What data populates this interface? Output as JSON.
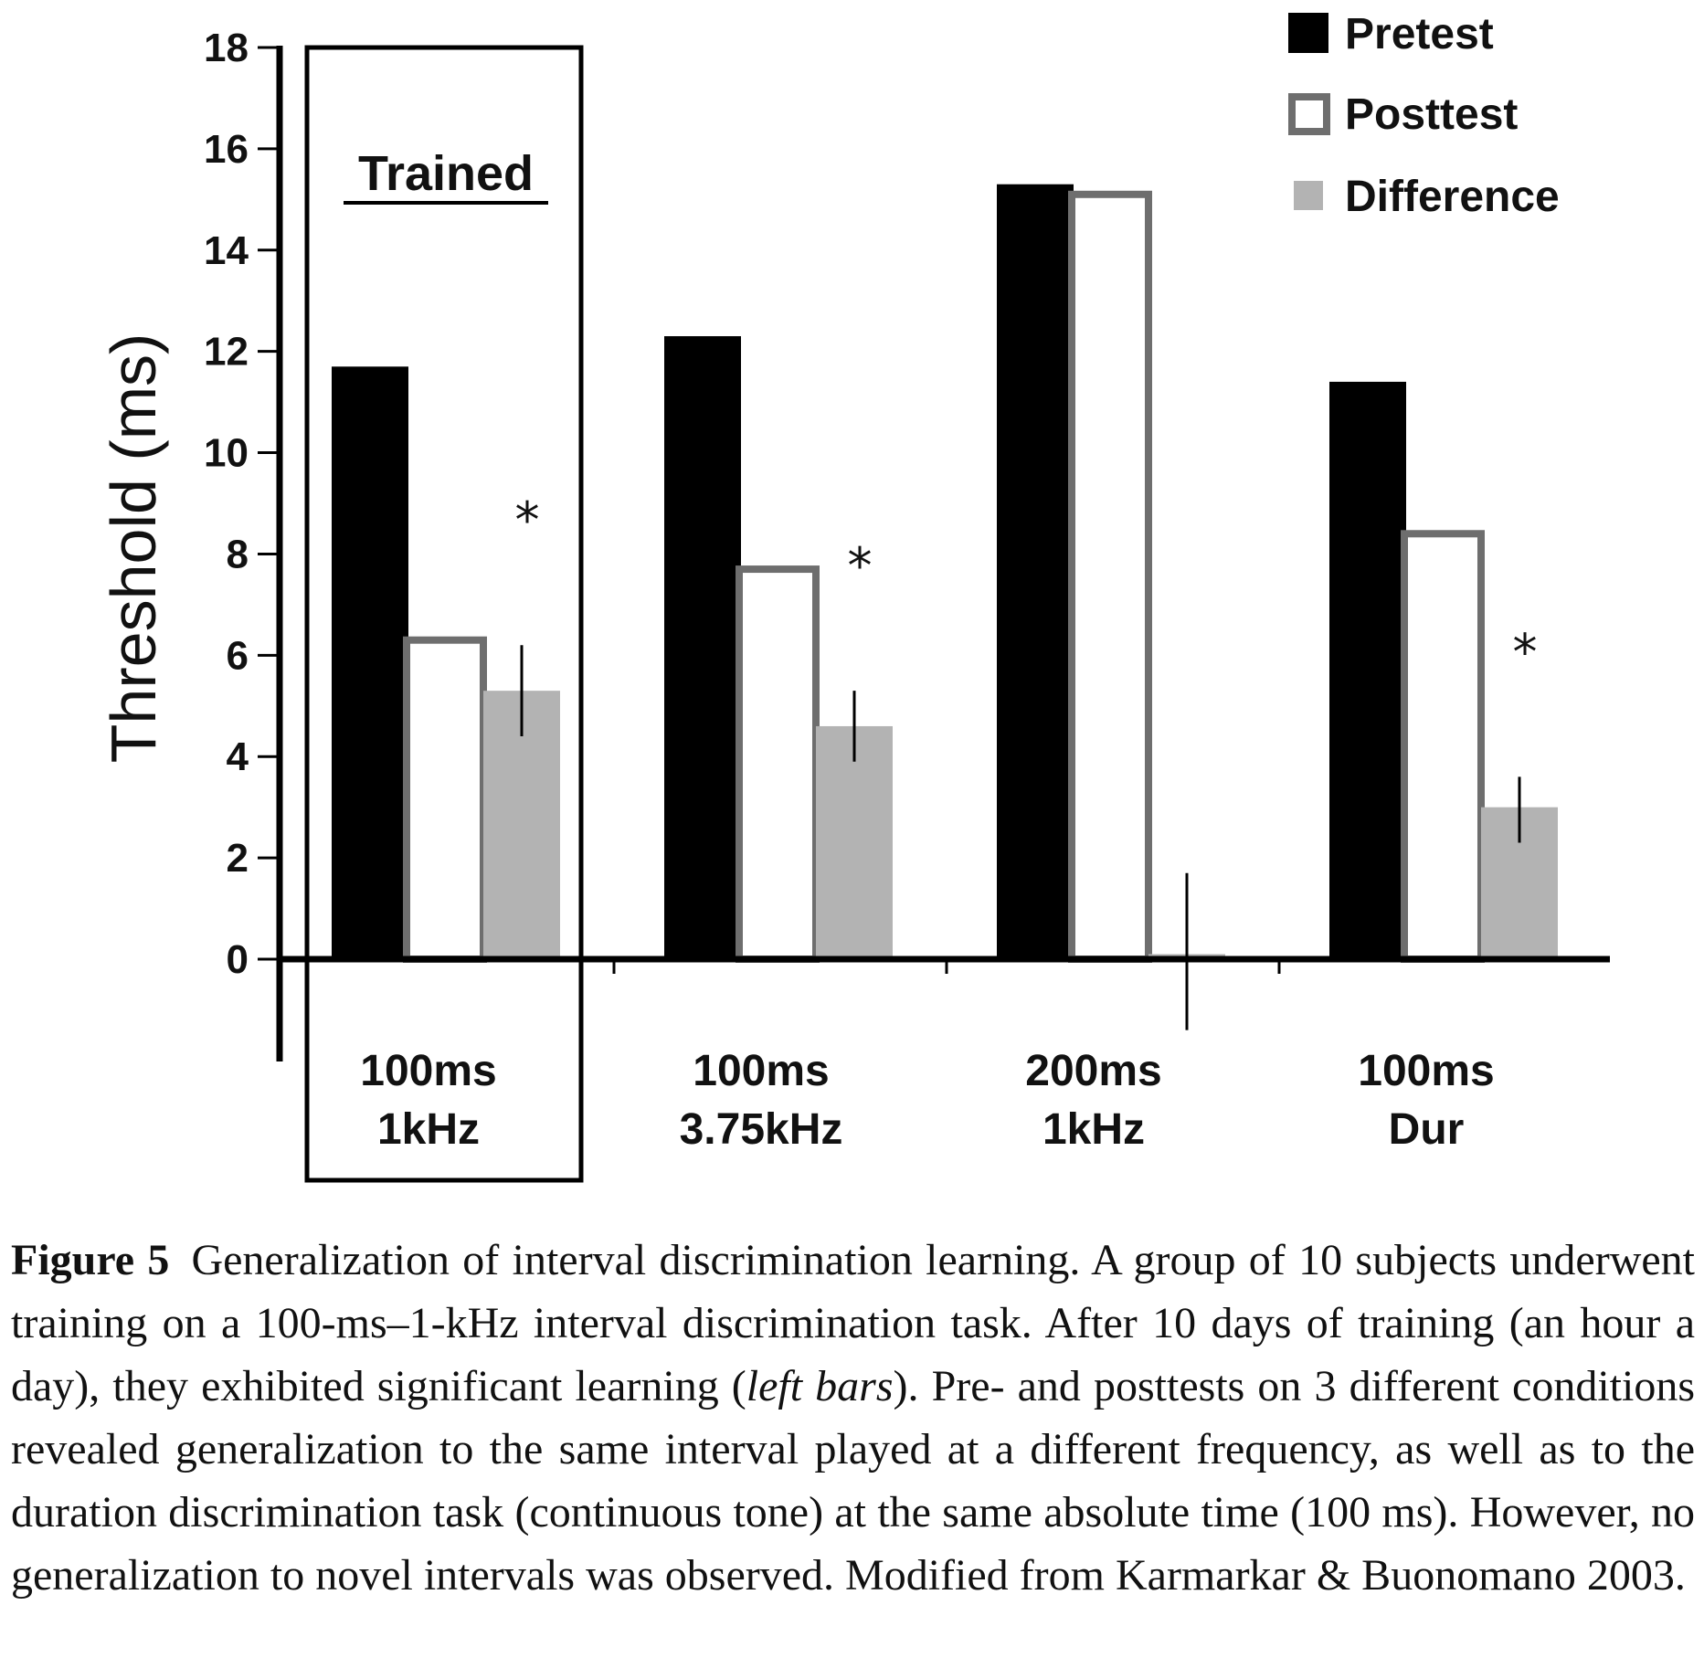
{
  "chart_data": {
    "type": "bar",
    "ylabel": "Threshold (ms)",
    "ylim": [
      0,
      18
    ],
    "yticks": [
      "0",
      "2",
      "4",
      "6",
      "8",
      "10",
      "12",
      "14",
      "16",
      "18"
    ],
    "categories": [
      {
        "line1": "100ms",
        "line2": "1kHz"
      },
      {
        "line1": "100ms",
        "line2": "3.75kHz"
      },
      {
        "line1": "200ms",
        "line2": "1kHz"
      },
      {
        "line1": "100ms",
        "line2": "Dur"
      }
    ],
    "series": [
      {
        "name": "Pretest",
        "values": [
          11.7,
          12.3,
          15.3,
          11.4
        ],
        "color": "#000000"
      },
      {
        "name": "Posttest",
        "values": [
          6.3,
          7.7,
          15.1,
          8.4
        ],
        "color": "#ffffff",
        "stroke": "#6e6e6e"
      },
      {
        "name": "Difference",
        "values": [
          5.3,
          4.6,
          0.1,
          3.0
        ],
        "color": "#b3b3b3",
        "error_low": [
          4.4,
          3.9,
          -1.4,
          2.3
        ],
        "error_high": [
          6.2,
          5.3,
          1.7,
          3.6
        ]
      }
    ],
    "significance": [
      "*",
      "*",
      "",
      "*"
    ],
    "highlight": {
      "label": "Trained",
      "category_index": 0
    },
    "legend_position": "top-right",
    "grid": false
  },
  "caption": {
    "figure_label": "Figure 5",
    "text_before_italic": "Generalization of interval discrimination learning. A group of 10 subjects underwent training on a 100-ms–1-kHz interval discrimination task. After 10 days of training (an hour a day), they exhibited significant learning (",
    "italic_text": "left bars",
    "text_after_italic": "). Pre- and posttests on 3 different conditions revealed generalization to the same interval played at a different frequency, as well as to the duration discrimination task (continuous tone) at the same absolute time (100 ms). However, no generalization to novel intervals was observed. Modified from Karmarkar & Buonomano 2003."
  }
}
